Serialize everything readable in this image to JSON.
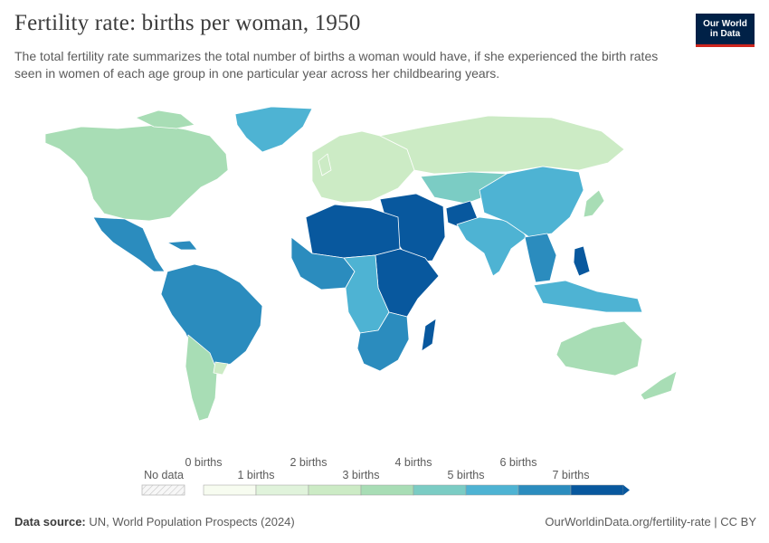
{
  "header": {
    "title": "Fertility rate: births per woman, 1950",
    "subtitle": "The total fertility rate summarizes the total number of births a woman would have, if she experienced the birth rates seen in women of each age group in one particular year across her childbearing years.",
    "logo_line1": "Our World",
    "logo_line2": "in Data"
  },
  "chart_data": {
    "type": "choropleth",
    "year": 1950,
    "metric": "births per woman",
    "legend": {
      "no_data_label": "No data",
      "top_labels": [
        "0 births",
        "2 births",
        "4 births",
        "6 births"
      ],
      "bottom_labels": [
        "1 births",
        "3 births",
        "5 births",
        "7 births"
      ],
      "bins": [
        {
          "min": 0,
          "max": 1,
          "color": "#f7fcf0"
        },
        {
          "min": 1,
          "max": 2,
          "color": "#e0f3db"
        },
        {
          "min": 2,
          "max": 3,
          "color": "#ccebc5"
        },
        {
          "min": 3,
          "max": 4,
          "color": "#a8ddb5"
        },
        {
          "min": 4,
          "max": 5,
          "color": "#7bccc4"
        },
        {
          "min": 5,
          "max": 6,
          "color": "#4eb3d3"
        },
        {
          "min": 6,
          "max": 7,
          "color": "#2b8cbe"
        },
        {
          "min": 7,
          "max": null,
          "color": "#08589e"
        }
      ]
    },
    "regions": [
      {
        "name": "North America",
        "value": 3.2
      },
      {
        "name": "Mexico and Central America",
        "value": 6.5
      },
      {
        "name": "Greenland",
        "value": 5.5
      },
      {
        "name": "South America",
        "value": 6.3
      },
      {
        "name": "Argentina",
        "value": 3.2
      },
      {
        "name": "Uruguay",
        "value": 2.7
      },
      {
        "name": "Europe",
        "value": 2.6
      },
      {
        "name": "Russia",
        "value": 2.9
      },
      {
        "name": "Central Asia",
        "value": 4.8
      },
      {
        "name": "Middle East",
        "value": 7.0
      },
      {
        "name": "Afghanistan",
        "value": 7.3
      },
      {
        "name": "North Africa",
        "value": 7.0
      },
      {
        "name": "West Africa",
        "value": 6.5
      },
      {
        "name": "East Africa",
        "value": 7.0
      },
      {
        "name": "Central Africa",
        "value": 5.8
      },
      {
        "name": "Southern Africa",
        "value": 6.0
      },
      {
        "name": "Madagascar",
        "value": 7.3
      },
      {
        "name": "South Asia",
        "value": 5.8
      },
      {
        "name": "China",
        "value": 5.8
      },
      {
        "name": "Japan",
        "value": 3.7
      },
      {
        "name": "Southeast Asia",
        "value": 6.2
      },
      {
        "name": "Philippines",
        "value": 7.3
      },
      {
        "name": "Indonesia",
        "value": 5.5
      },
      {
        "name": "Australia",
        "value": 3.1
      },
      {
        "name": "New Zealand",
        "value": 3.6
      }
    ]
  },
  "footer": {
    "source_label": "Data source:",
    "source_text": "UN, World Population Prospects (2024)",
    "url_text": "OurWorldinData.org/fertility-rate | CC BY"
  }
}
